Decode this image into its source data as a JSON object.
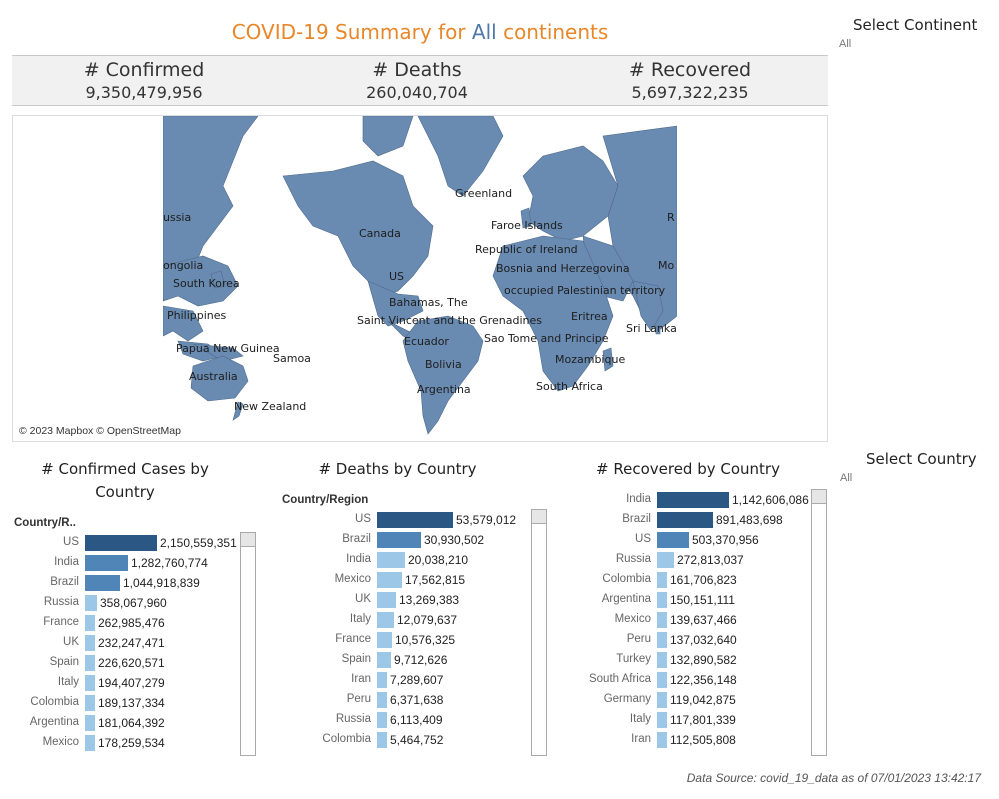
{
  "header": {
    "title_prefix": "COVID-19 Summary for ",
    "title_highlight": "All",
    "title_suffix": " continents"
  },
  "kpis": [
    {
      "label": "# Confirmed",
      "value": "9,350,479,956"
    },
    {
      "label": "# Deaths",
      "value": "260,040,704"
    },
    {
      "label": "# Recovered",
      "value": "5,697,322,235"
    }
  ],
  "filters": {
    "continent": {
      "label": "Select Continent",
      "value": "All"
    },
    "country": {
      "label": "Select Country",
      "value": "All"
    }
  },
  "map": {
    "credit": "© 2023 Mapbox © OpenStreetMap",
    "land_color": "#6a8bb1",
    "labels": [
      "ussia",
      "Canada",
      "Greenland",
      "Faroe Islands",
      "Republic of Ireland",
      "Bosnia and Herzegovina",
      "US",
      "ongolia",
      "South Korea",
      "Bahamas, The",
      "occupied Palestinian territory",
      "Mo",
      "R",
      "Philippines",
      "Saint Vincent and the Grenadines",
      "Eritrea",
      "Sri Lanka",
      "Ecuador",
      "Sao Tome and Principe",
      "Papua New Guinea",
      "Samoa",
      "Mozambique",
      "Bolivia",
      "Australia",
      "South Africa",
      "Argentina",
      "New Zealand"
    ]
  },
  "charts": {
    "confirmed": {
      "title_line1": "# Confirmed Cases by",
      "title_line2": "Country",
      "column_header": "Country/R..",
      "rows": [
        {
          "country": "US",
          "value": "2,150,559,351",
          "n": 2150559351
        },
        {
          "country": "India",
          "value": "1,282,760,774",
          "n": 1282760774
        },
        {
          "country": "Brazil",
          "value": "1,044,918,839",
          "n": 1044918839
        },
        {
          "country": "Russia",
          "value": "358,067,960",
          "n": 358067960
        },
        {
          "country": "France",
          "value": "262,985,476",
          "n": 262985476
        },
        {
          "country": "UK",
          "value": "232,247,471",
          "n": 232247471
        },
        {
          "country": "Spain",
          "value": "226,620,571",
          "n": 226620571
        },
        {
          "country": "Italy",
          "value": "194,407,279",
          "n": 194407279
        },
        {
          "country": "Colombia",
          "value": "189,137,334",
          "n": 189137334
        },
        {
          "country": "Argentina",
          "value": "181,064,392",
          "n": 181064392
        },
        {
          "country": "Mexico",
          "value": "178,259,534",
          "n": 178259534
        }
      ]
    },
    "deaths": {
      "title_line1": "# Deaths by Country",
      "column_header": "Country/Region",
      "rows": [
        {
          "country": "US",
          "value": "53,579,012",
          "n": 53579012
        },
        {
          "country": "Brazil",
          "value": "30,930,502",
          "n": 30930502
        },
        {
          "country": "India",
          "value": "20,038,210",
          "n": 20038210
        },
        {
          "country": "Mexico",
          "value": "17,562,815",
          "n": 17562815
        },
        {
          "country": "UK",
          "value": "13,269,383",
          "n": 13269383
        },
        {
          "country": "Italy",
          "value": "12,079,637",
          "n": 12079637
        },
        {
          "country": "France",
          "value": "10,576,325",
          "n": 10576325
        },
        {
          "country": "Spain",
          "value": "9,712,626",
          "n": 9712626
        },
        {
          "country": "Iran",
          "value": "7,289,607",
          "n": 7289607
        },
        {
          "country": "Peru",
          "value": "6,371,638",
          "n": 6371638
        },
        {
          "country": "Russia",
          "value": "6,113,409",
          "n": 6113409
        },
        {
          "country": "Colombia",
          "value": "5,464,752",
          "n": 5464752
        }
      ]
    },
    "recovered": {
      "title_line1": "# Recovered by Country",
      "rows": [
        {
          "country": "India",
          "value": "1,142,606,086",
          "n": 1142606086
        },
        {
          "country": "Brazil",
          "value": "891,483,698",
          "n": 891483698
        },
        {
          "country": "US",
          "value": "503,370,956",
          "n": 503370956
        },
        {
          "country": "Russia",
          "value": "272,813,037",
          "n": 272813037
        },
        {
          "country": "Colombia",
          "value": "161,706,823",
          "n": 161706823
        },
        {
          "country": "Argentina",
          "value": "150,151,111",
          "n": 150151111
        },
        {
          "country": "Mexico",
          "value": "139,637,466",
          "n": 139637466
        },
        {
          "country": "Peru",
          "value": "137,032,640",
          "n": 137032640
        },
        {
          "country": "Turkey",
          "value": "132,890,582",
          "n": 132890582
        },
        {
          "country": "South Africa",
          "value": "122,356,148",
          "n": 122356148
        },
        {
          "country": "Germany",
          "value": "119,042,875",
          "n": 119042875
        },
        {
          "country": "Italy",
          "value": "117,801,339",
          "n": 117801339
        },
        {
          "country": "Iran",
          "value": "112,505,808",
          "n": 112505808
        }
      ]
    }
  },
  "colors": {
    "title_orange": "#e8862a",
    "highlight_blue": "#4e79a7",
    "bar_dark": "#2a5783",
    "bar_mid": "#4f86b7",
    "bar_light": "#9dc7e6"
  },
  "footer": {
    "source": "Data Source: covid_19_data as of 07/01/2023 13:42:17"
  }
}
